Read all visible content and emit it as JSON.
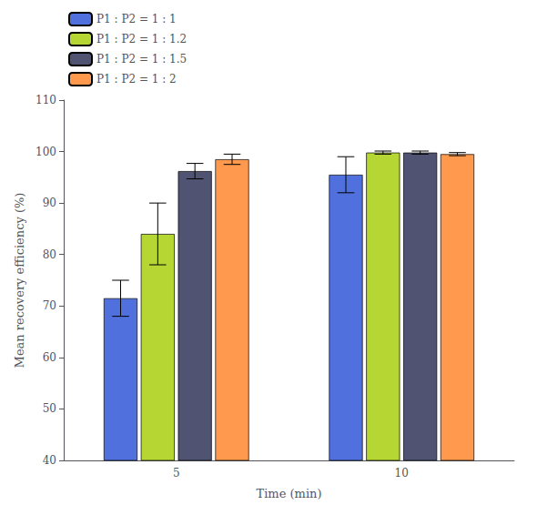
{
  "chart_data": {
    "type": "bar",
    "xlabel": "Time (min)",
    "ylabel": "Mean recovery efficiency (%)",
    "categories": [
      "5",
      "10"
    ],
    "series": [
      {
        "name": "P1 : P2 = 1 : 1",
        "values": [
          71.5,
          95.5
        ],
        "errors": [
          3.5,
          3.5
        ]
      },
      {
        "name": "P1 : P2 = 1 : 1.2",
        "values": [
          84.0,
          99.8
        ],
        "errors": [
          6.0,
          0.3
        ]
      },
      {
        "name": "P1 : P2 = 1 : 1.5",
        "values": [
          96.2,
          99.8
        ],
        "errors": [
          1.5,
          0.3
        ]
      },
      {
        "name": "P1 : P2 = 1 : 2",
        "values": [
          98.5,
          99.5
        ],
        "errors": [
          1.0,
          0.3
        ]
      }
    ],
    "ylim": [
      40,
      110
    ],
    "yticks": [
      40,
      50,
      60,
      70,
      80,
      90,
      100,
      110
    ],
    "grid": false,
    "legend": "upper left"
  }
}
